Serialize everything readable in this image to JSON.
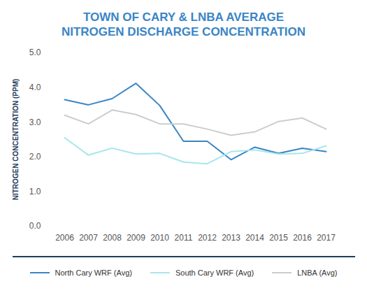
{
  "chart_data": {
    "type": "line",
    "title": "TOWN OF CARY & LNBA AVERAGE NITROGEN DISCHARGE CONCENTRATION",
    "y_label": "NITROGEN CONCENTRATION (PPM)",
    "categories": [
      "2006",
      "2007",
      "2008",
      "2009",
      "2010",
      "2011",
      "2012",
      "2013",
      "2014",
      "2015",
      "2016",
      "2017"
    ],
    "series": [
      {
        "name": "North Cary WRF (Avg)",
        "color": "#3a85c6",
        "values": [
          3.65,
          3.5,
          3.68,
          4.12,
          3.48,
          2.45,
          2.45,
          1.92,
          2.28,
          2.1,
          2.25,
          2.15
        ]
      },
      {
        "name": "South Cary WRF (Avg)",
        "color": "#a7e6ec",
        "values": [
          2.55,
          2.05,
          2.25,
          2.08,
          2.1,
          1.85,
          1.8,
          2.15,
          2.2,
          2.08,
          2.1,
          2.32
        ]
      },
      {
        "name": "LNBA (Avg)",
        "color": "#c9cfcc",
        "values": [
          3.2,
          2.95,
          3.35,
          3.22,
          2.95,
          2.95,
          2.8,
          2.62,
          2.72,
          3.02,
          3.12,
          2.8
        ]
      }
    ],
    "ylim": [
      0,
      5
    ],
    "yticks": [
      0,
      1,
      2,
      3,
      4,
      5
    ],
    "grid": false,
    "legend": "bottom"
  }
}
